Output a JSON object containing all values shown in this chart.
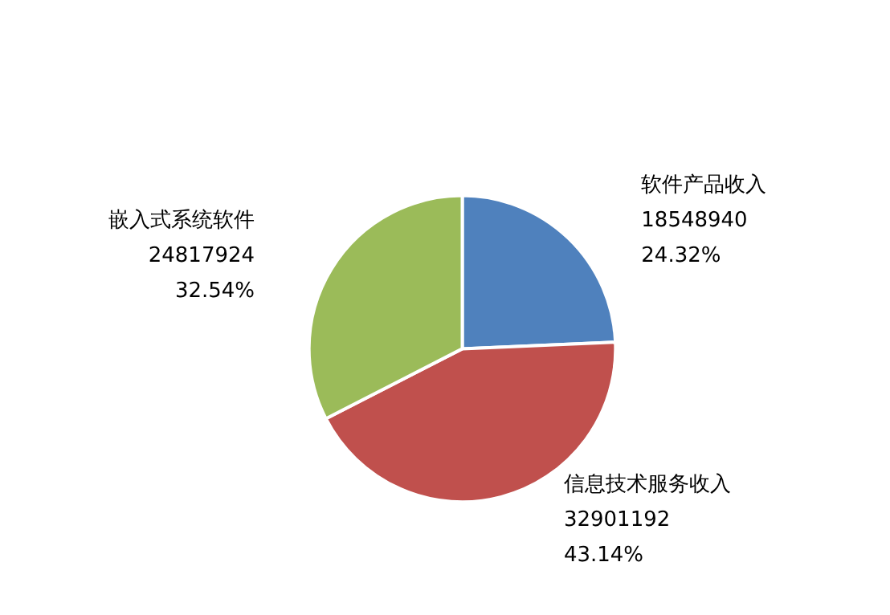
{
  "chart_data": {
    "type": "pie",
    "categories": [
      "软件产品收入",
      "信息技术服务收入",
      "嵌入式系统软件"
    ],
    "values": [
      24.32,
      43.14,
      32.54
    ],
    "colors": [
      "#4f81bd",
      "#c0504d",
      "#9bbb59"
    ],
    "value_labels": [
      "18548940\n24.32%",
      "32901192\n43.14%",
      "24817924\n32.54%"
    ],
    "legend": false
  }
}
